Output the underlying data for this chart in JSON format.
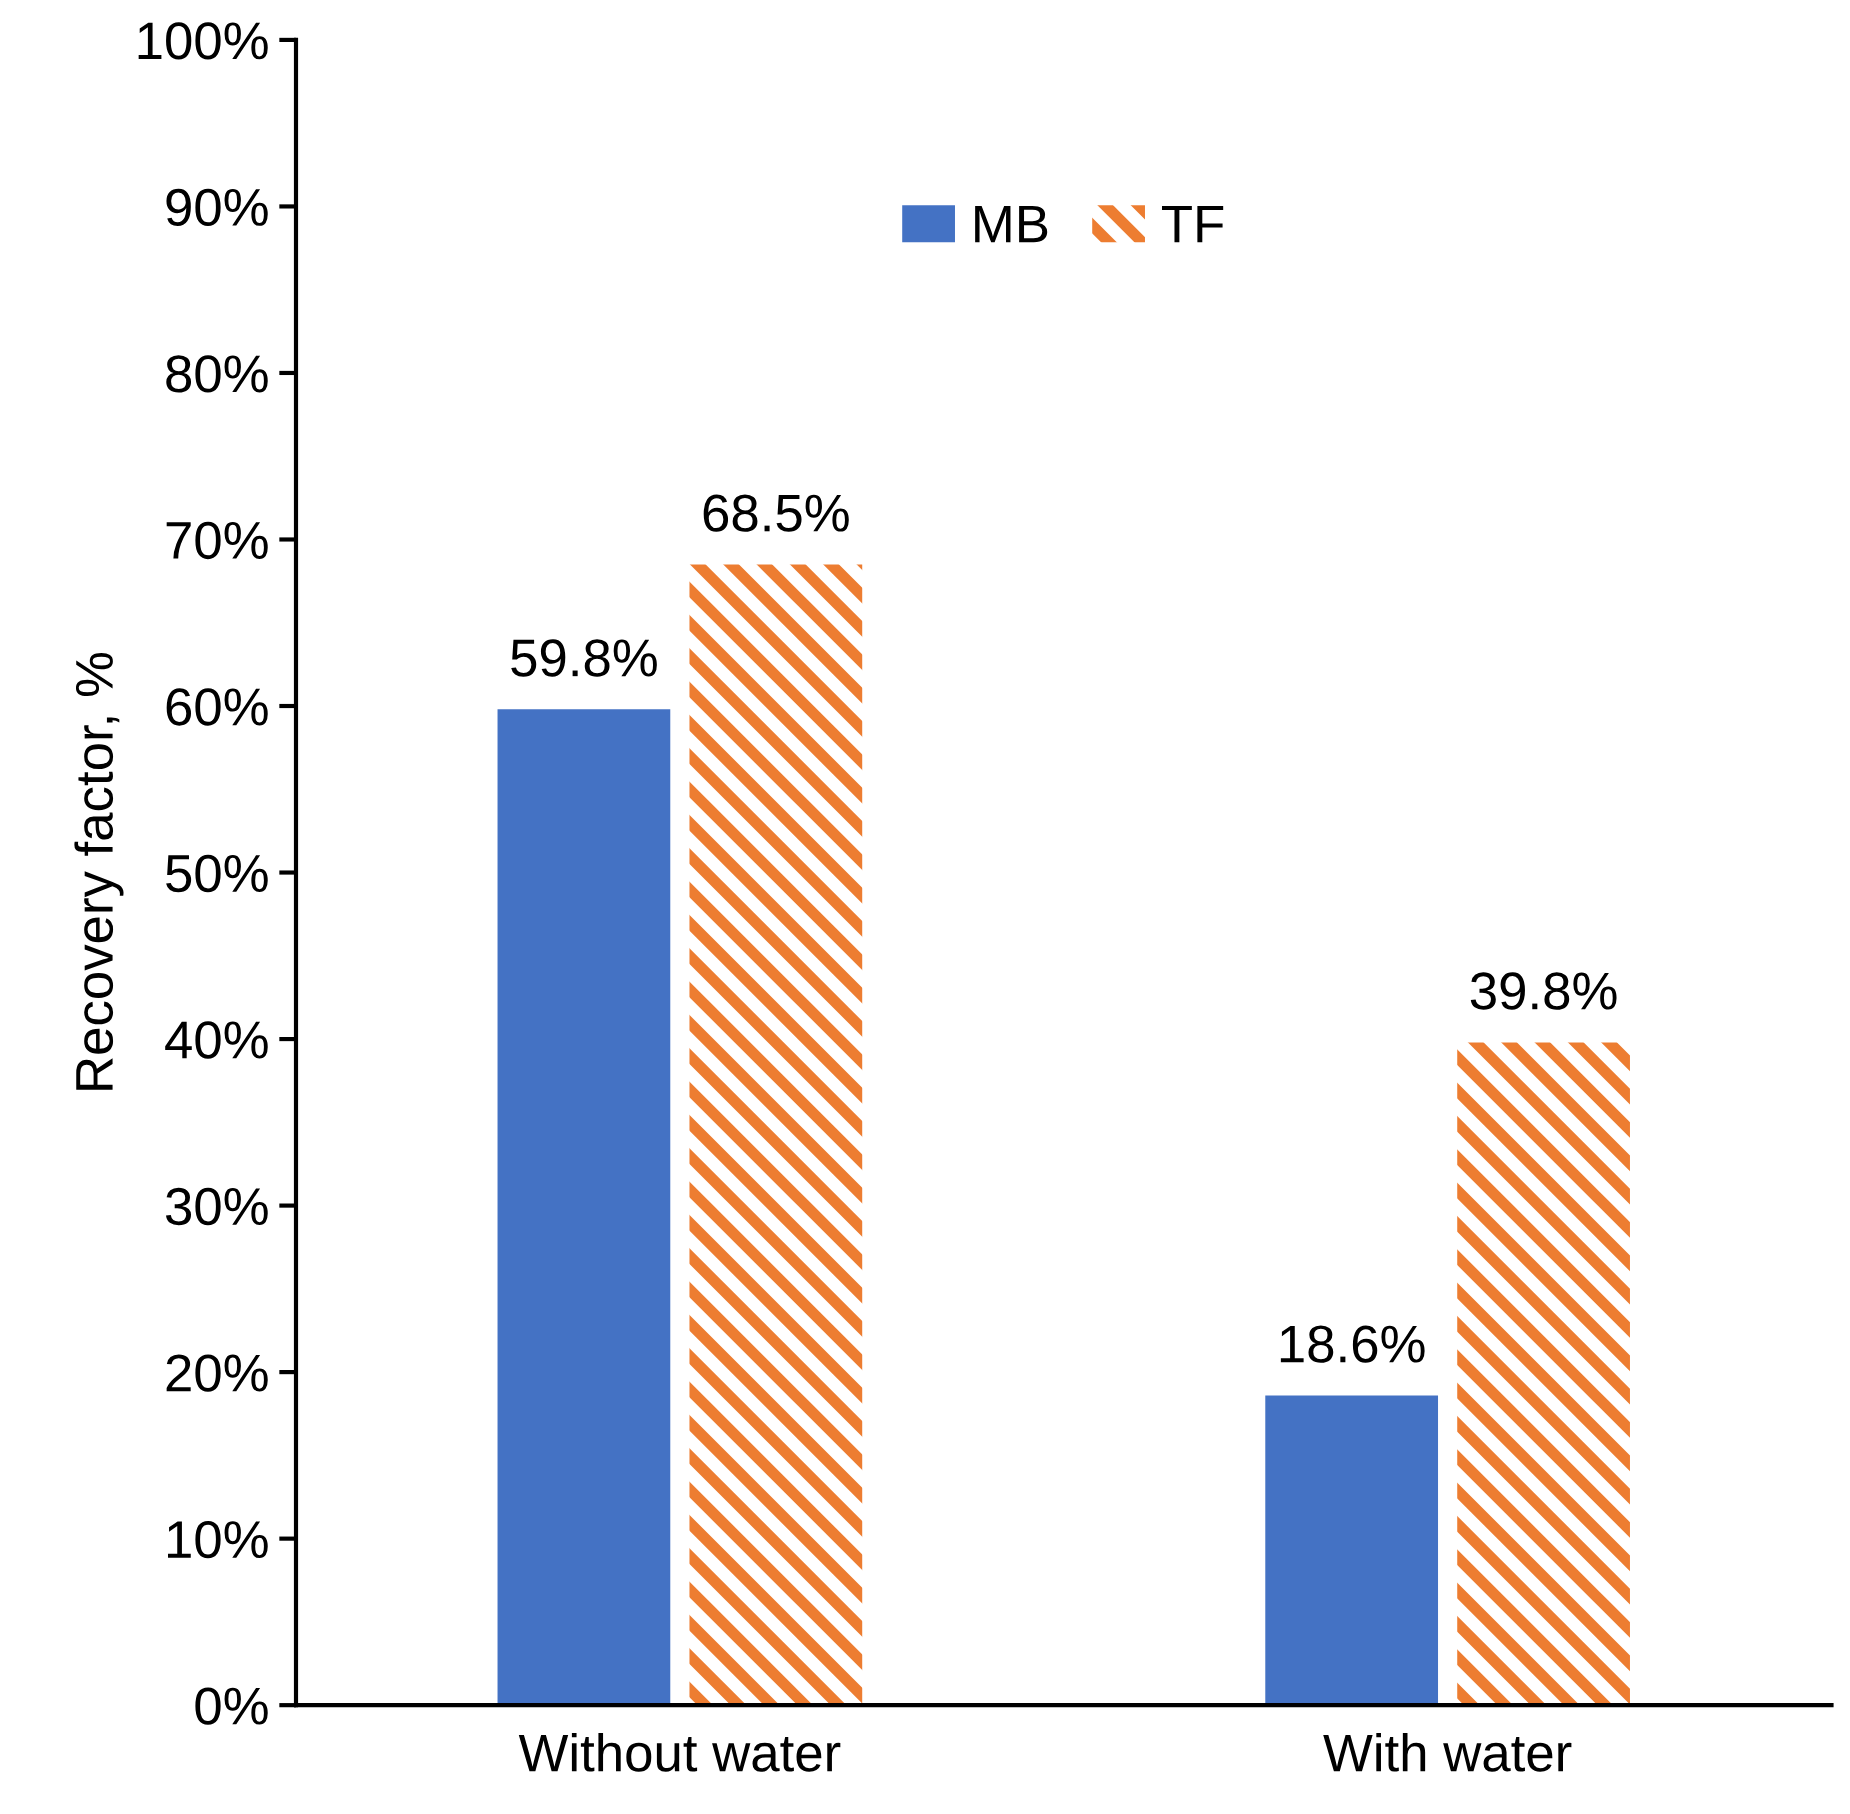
{
  "chart_data": {
    "type": "bar",
    "ylabel": "Recovery factor, %",
    "categories": [
      "Without water",
      "With water"
    ],
    "series": [
      {
        "name": "MB",
        "color": "#4472c4",
        "values": [
          59.8,
          18.6
        ],
        "value_labels": [
          "59.8%",
          "18.6%"
        ]
      },
      {
        "name": "TF",
        "color": "#ed7d31",
        "values": [
          68.5,
          39.8
        ],
        "value_labels": [
          "68.5%",
          "39.8%"
        ]
      }
    ],
    "ylim": [
      0,
      100
    ],
    "yticks": [
      {
        "value": 0,
        "label": "0%"
      },
      {
        "value": 10,
        "label": "10%"
      },
      {
        "value": 20,
        "label": "20%"
      },
      {
        "value": 30,
        "label": "30%"
      },
      {
        "value": 40,
        "label": "40%"
      },
      {
        "value": 50,
        "label": "50%"
      },
      {
        "value": 60,
        "label": "60%"
      },
      {
        "value": 70,
        "label": "70%"
      },
      {
        "value": 80,
        "label": "80%"
      },
      {
        "value": 90,
        "label": "90%"
      },
      {
        "value": 100,
        "label": "100%"
      }
    ],
    "grid": false,
    "legend": "top"
  }
}
